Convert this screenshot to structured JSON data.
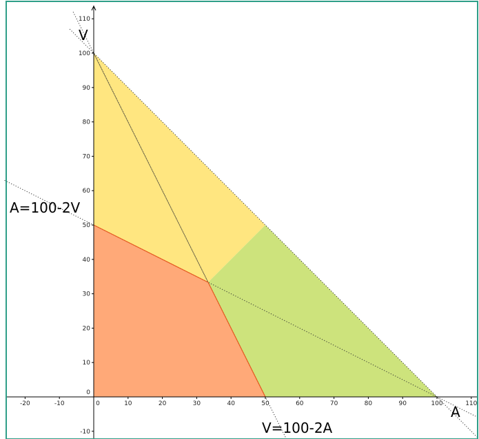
{
  "axes": {
    "x_name": "A",
    "y_name": "V",
    "x_ticks": [
      "-20",
      "-10",
      "0",
      "10",
      "20",
      "30",
      "40",
      "50",
      "60",
      "70",
      "80",
      "90",
      "100",
      "110"
    ],
    "y_ticks": [
      "-10",
      "0",
      "10",
      "20",
      "30",
      "40",
      "50",
      "60",
      "70",
      "80",
      "90",
      "100",
      "110"
    ],
    "x_range": [
      -27,
      112
    ],
    "y_range": [
      -12,
      113
    ]
  },
  "labels": {
    "line1": "A=100-2V",
    "line2": "V=100-2A"
  },
  "colors": {
    "frame": "#2e9e88",
    "region_a": "#ffa978",
    "region_b": "#ffe680",
    "region_c": "#cde37c",
    "boundary": "#e85a1f",
    "dotted": "#333333"
  },
  "regions": {
    "region_a": [
      [
        0,
        0
      ],
      [
        0,
        50
      ],
      [
        33.33,
        33.33
      ],
      [
        50,
        0
      ]
    ],
    "region_b": [
      [
        0,
        50
      ],
      [
        0,
        100
      ],
      [
        50,
        50
      ],
      [
        33.33,
        33.33
      ]
    ],
    "region_c": [
      [
        33.33,
        33.33
      ],
      [
        50,
        50
      ],
      [
        100,
        0
      ],
      [
        50,
        0
      ]
    ]
  }
}
